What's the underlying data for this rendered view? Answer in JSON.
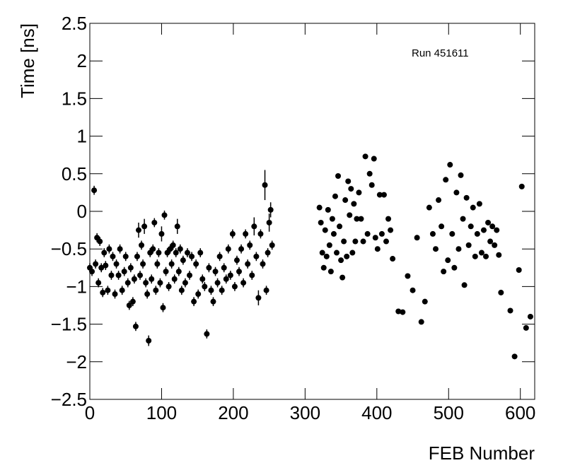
{
  "chart_data": {
    "type": "scatter",
    "annotation": "Run 451611",
    "xlabel": "FEB Number",
    "ylabel": "Time [ns]",
    "color": "#000000",
    "xlim": [
      0,
      620
    ],
    "xticks": [
      0,
      100,
      200,
      300,
      400,
      500,
      600
    ],
    "ylim": [
      -2.5,
      2.5
    ],
    "yticks": [
      {
        "value": -2.5,
        "label": "−2.5"
      },
      {
        "value": -2,
        "label": "−2"
      },
      {
        "value": -1.5,
        "label": "−1.5"
      },
      {
        "value": -1,
        "label": "−1"
      },
      {
        "value": -0.5,
        "label": "−0.5"
      },
      0,
      0.5,
      1,
      1.5,
      2,
      2.5
    ],
    "x": [
      0,
      3,
      6,
      8,
      10,
      12,
      14,
      16,
      18,
      20,
      22,
      25,
      27,
      30,
      32,
      35,
      37,
      40,
      42,
      45,
      48,
      50,
      53,
      55,
      57,
      60,
      62,
      64,
      66,
      68,
      70,
      72,
      74,
      76,
      78,
      80,
      82,
      84,
      86,
      88,
      90,
      92,
      94,
      96,
      98,
      100,
      102,
      104,
      106,
      108,
      110,
      112,
      114,
      116,
      118,
      120,
      122,
      124,
      126,
      128,
      130,
      133,
      136,
      139,
      142,
      145,
      148,
      151,
      154,
      157,
      160,
      163,
      166,
      169,
      172,
      175,
      178,
      181,
      184,
      187,
      190,
      193,
      196,
      199,
      202,
      205,
      208,
      211,
      214,
      217,
      220,
      223,
      226,
      229,
      232,
      235,
      238,
      241,
      244,
      246,
      248,
      250,
      252,
      254,
      320,
      322,
      324,
      326,
      328,
      330,
      332,
      334,
      336,
      338,
      340,
      342,
      344,
      346,
      348,
      350,
      352,
      354,
      356,
      358,
      360,
      362,
      364,
      366,
      368,
      370,
      372,
      375,
      378,
      381,
      384,
      387,
      390,
      393,
      396,
      398,
      401,
      404,
      407,
      410,
      413,
      416,
      419,
      422,
      430,
      436,
      443,
      450,
      456,
      462,
      467,
      473,
      478,
      482,
      486,
      490,
      493,
      496,
      499,
      502,
      505,
      508,
      511,
      514,
      517,
      520,
      522,
      525,
      528,
      531,
      534,
      537,
      540,
      543,
      546,
      549,
      552,
      555,
      558,
      561,
      564,
      567,
      570,
      573,
      586,
      592,
      598,
      602,
      608,
      614
    ],
    "values": [
      -0.75,
      -0.8,
      0.28,
      -0.7,
      -0.35,
      -0.95,
      -0.4,
      -0.75,
      -1.08,
      -0.55,
      -0.72,
      -1.05,
      -0.5,
      -0.85,
      -0.6,
      -1.1,
      -0.7,
      -0.85,
      -0.5,
      -1.05,
      -0.8,
      -0.6,
      -0.95,
      -1.25,
      -0.75,
      -1.2,
      -0.9,
      -1.53,
      -0.6,
      -0.25,
      -0.85,
      -0.45,
      -0.7,
      -0.2,
      -0.95,
      -1.1,
      -1.72,
      -0.55,
      -0.9,
      -0.5,
      -0.15,
      -1.05,
      -0.7,
      -0.55,
      -0.95,
      -0.3,
      -1.28,
      -0.05,
      -0.8,
      -0.55,
      -1.0,
      -0.5,
      -0.7,
      -0.45,
      -0.9,
      -0.55,
      -0.2,
      -0.8,
      -0.5,
      -1.05,
      -0.65,
      -0.95,
      -0.55,
      -0.85,
      -0.6,
      -1.2,
      -0.7,
      -1.1,
      -0.55,
      -0.9,
      -1.0,
      -1.63,
      -0.75,
      -1.05,
      -1.2,
      -0.8,
      -0.95,
      -0.6,
      -1.05,
      -0.75,
      -0.9,
      -0.5,
      -0.85,
      -0.3,
      -1.0,
      -0.65,
      -0.8,
      -0.5,
      -0.95,
      -0.3,
      -0.7,
      -0.45,
      -0.85,
      -0.2,
      -0.6,
      -1.15,
      -0.3,
      -0.7,
      0.35,
      -1.05,
      -0.55,
      -0.15,
      0.02,
      -0.45,
      0.05,
      -0.15,
      -0.55,
      -0.75,
      -0.25,
      -0.6,
      0.02,
      -0.45,
      -0.8,
      -0.1,
      -0.3,
      0.2,
      -0.55,
      0.47,
      -0.2,
      -0.65,
      -0.88,
      -0.4,
      0.15,
      -0.6,
      0.4,
      -0.05,
      0.3,
      -0.55,
      0.1,
      -0.4,
      -0.1,
      0.25,
      -0.1,
      -0.4,
      0.73,
      -0.3,
      0.5,
      0.35,
      0.7,
      -0.35,
      -0.5,
      0.22,
      -0.3,
      0.22,
      -0.4,
      -0.1,
      -0.25,
      -0.63,
      -1.33,
      -1.34,
      -0.86,
      -1.05,
      -0.35,
      -1.47,
      -1.2,
      0.05,
      -0.3,
      -0.5,
      0.15,
      -0.2,
      -0.8,
      0.42,
      -0.65,
      0.62,
      -0.3,
      -0.75,
      0.25,
      -0.5,
      0.48,
      -0.1,
      -0.98,
      0.18,
      -0.45,
      -0.2,
      0.05,
      -0.6,
      -0.3,
      0.1,
      -0.55,
      -0.25,
      -0.6,
      -0.15,
      -0.4,
      -0.2,
      -0.45,
      -0.25,
      -0.58,
      -1.08,
      -1.32,
      -1.93,
      -0.78,
      0.33,
      -1.55,
      -1.4
    ],
    "errors": [
      0.06,
      0.06,
      0.06,
      0.06,
      0.06,
      0.06,
      0.06,
      0.06,
      0.06,
      0.06,
      0.06,
      0.06,
      0.06,
      0.06,
      0.06,
      0.06,
      0.06,
      0.06,
      0.06,
      0.06,
      0.06,
      0.06,
      0.06,
      0.06,
      0.06,
      0.06,
      0.06,
      0.06,
      0.06,
      0.1,
      0.06,
      0.06,
      0.06,
      0.1,
      0.06,
      0.06,
      0.07,
      0.06,
      0.06,
      0.06,
      0.06,
      0.06,
      0.06,
      0.06,
      0.06,
      0.1,
      0.06,
      0.06,
      0.06,
      0.06,
      0.06,
      0.06,
      0.06,
      0.06,
      0.06,
      0.06,
      0.1,
      0.06,
      0.06,
      0.06,
      0.06,
      0.06,
      0.06,
      0.06,
      0.06,
      0.06,
      0.06,
      0.06,
      0.06,
      0.06,
      0.06,
      0.06,
      0.06,
      0.06,
      0.06,
      0.06,
      0.06,
      0.06,
      0.06,
      0.06,
      0.06,
      0.06,
      0.06,
      0.06,
      0.06,
      0.06,
      0.06,
      0.06,
      0.06,
      0.06,
      0.06,
      0.06,
      0.06,
      0.12,
      0.06,
      0.1,
      0.06,
      0.06,
      0.2,
      0.06,
      0.06,
      0.12,
      0.1,
      0.06,
      0.03,
      0.03,
      0.03,
      0.03,
      0.03,
      0.03,
      0.03,
      0.03,
      0.03,
      0.03,
      0.03,
      0.03,
      0.03,
      0.03,
      0.03,
      0.03,
      0.03,
      0.03,
      0.03,
      0.03,
      0.03,
      0.03,
      0.03,
      0.03,
      0.03,
      0.03,
      0.03,
      0.03,
      0.03,
      0.03,
      0.03,
      0.03,
      0.03,
      0.03,
      0.03,
      0.03,
      0.03,
      0.03,
      0.03,
      0.03,
      0.03,
      0.03,
      0.03,
      0.03,
      0.03,
      0.03,
      0.03,
      0.03,
      0.03,
      0.03,
      0.03,
      0.03,
      0.03,
      0.03,
      0.03,
      0.03,
      0.03,
      0.03,
      0.03,
      0.03,
      0.03,
      0.03,
      0.03,
      0.03,
      0.03,
      0.03,
      0.03,
      0.03,
      0.03,
      0.03,
      0.03,
      0.03,
      0.03,
      0.03,
      0.03,
      0.03,
      0.03,
      0.03,
      0.03,
      0.03,
      0.03,
      0.03,
      0.03,
      0.03,
      0.03,
      0.03,
      0.03,
      0.03,
      0.03,
      0.03
    ]
  }
}
